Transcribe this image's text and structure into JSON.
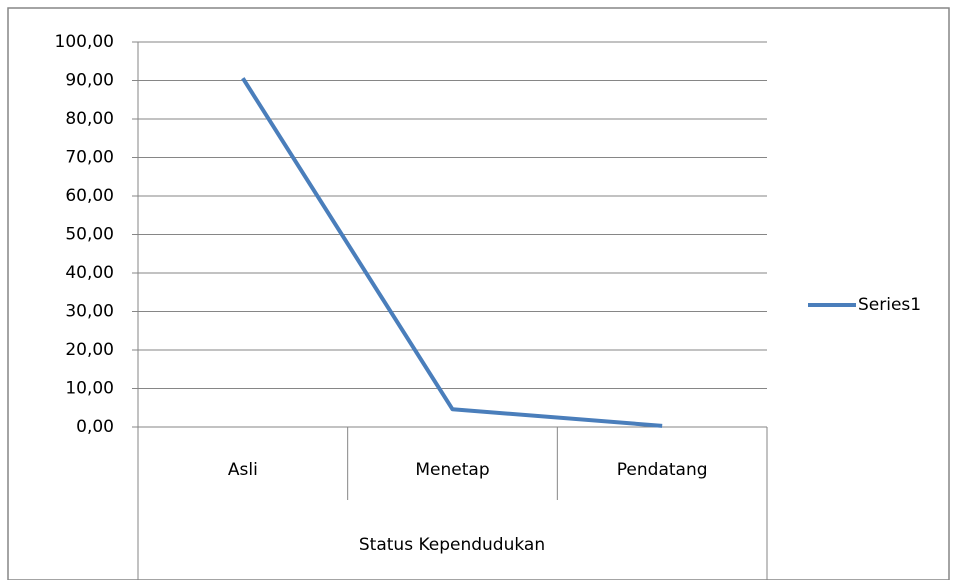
{
  "chart_data": {
    "type": "line",
    "x_label": "Status Kependudukan",
    "categories": [
      "Asli",
      "Menetap",
      "Pendatang"
    ],
    "series": [
      {
        "name": "Series1",
        "color": "#4a7ebb",
        "values": [
          90.6,
          4.6,
          0.3
        ]
      }
    ],
    "ylim": [
      0,
      100
    ],
    "yticks": [
      {
        "value": 0,
        "label": "0,00"
      },
      {
        "value": 10,
        "label": "10,00"
      },
      {
        "value": 20,
        "label": "20,00"
      },
      {
        "value": 30,
        "label": "30,00"
      },
      {
        "value": 40,
        "label": "40,00"
      },
      {
        "value": 50,
        "label": "50,00"
      },
      {
        "value": 60,
        "label": "60,00"
      },
      {
        "value": 70,
        "label": "70,00"
      },
      {
        "value": 80,
        "label": "80,00"
      },
      {
        "value": 90,
        "label": "90,00"
      },
      {
        "value": 100,
        "label": "100,00"
      }
    ],
    "grid": true,
    "legend": "right"
  }
}
